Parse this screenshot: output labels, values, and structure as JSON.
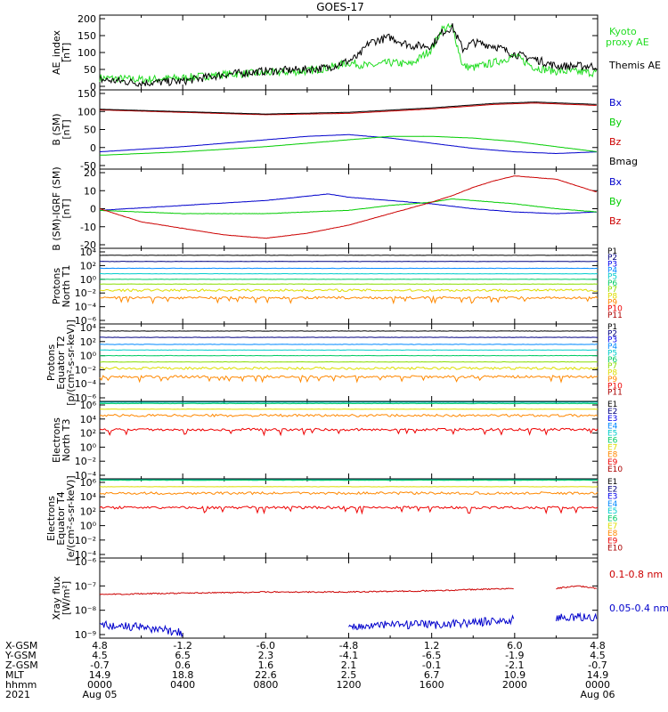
{
  "title": "GOES-17",
  "colors": {
    "black": "#000000",
    "blue": "#0000cc",
    "green": "#00cc00",
    "red": "#cc0000",
    "kyoto_green": "#22dd22"
  },
  "time_axis": {
    "rows": [
      {
        "label": "X-GSM",
        "values": [
          "4.8",
          "-1.2",
          "-6.0",
          "-4.8",
          "1.2",
          "6.0",
          "4.8"
        ]
      },
      {
        "label": "Y-GSM",
        "values": [
          "4.5",
          "6.5",
          "2.3",
          "-4.1",
          "-6.5",
          "-1.9",
          "4.5"
        ]
      },
      {
        "label": "Z-GSM",
        "values": [
          "-0.7",
          "0.6",
          "1.6",
          "2.1",
          "-0.1",
          "-2.1",
          "-0.7"
        ]
      },
      {
        "label": "MLT",
        "values": [
          "14.9",
          "18.8",
          "22.6",
          "2.5",
          "6.7",
          "10.9",
          "14.9"
        ]
      },
      {
        "label": "hhmm",
        "values": [
          "0000",
          "0400",
          "0800",
          "1200",
          "1600",
          "2000",
          "0000"
        ]
      },
      {
        "label": "2021",
        "values": [
          "Aug 05",
          "",
          "",
          "",
          "",
          "",
          "Aug 06"
        ]
      }
    ]
  },
  "chart_data": [
    {
      "type": "line",
      "ylabel": [
        "AE_index",
        "[nT]"
      ],
      "yticks": [
        "200",
        "150",
        "100",
        "50",
        "0"
      ],
      "ylim": [
        0,
        200
      ],
      "x": "hours 0-24, Aug 05 2021",
      "series": [
        {
          "name": "Kyoto proxy AE",
          "color": "#22dd22",
          "x": [
            0,
            2,
            4,
            6,
            8,
            10,
            11,
            12,
            13,
            14,
            15,
            16,
            16.5,
            17,
            17.5,
            18,
            19,
            20,
            21,
            22,
            24
          ],
          "values": [
            25,
            20,
            25,
            35,
            40,
            45,
            55,
            70,
            60,
            70,
            65,
            110,
            170,
            175,
            60,
            55,
            70,
            90,
            55,
            45,
            40
          ]
        },
        {
          "name": "Themis AE",
          "color": "#000000",
          "x": [
            0,
            2,
            4,
            6,
            8,
            10,
            11,
            12,
            12.5,
            13,
            14,
            15,
            16,
            16.5,
            17,
            17.5,
            18,
            19,
            20,
            21,
            22,
            24
          ],
          "values": [
            20,
            10,
            15,
            35,
            45,
            50,
            55,
            75,
            90,
            130,
            145,
            120,
            120,
            160,
            175,
            110,
            130,
            120,
            95,
            80,
            60,
            60
          ]
        }
      ]
    },
    {
      "type": "line",
      "ylabel": [
        "B (SM)",
        "[nT]"
      ],
      "yticks": [
        "150",
        "100",
        "50",
        "0",
        "-50"
      ],
      "ylim": [
        -60,
        150
      ],
      "series": [
        {
          "name": "Bx",
          "color": "#0000cc",
          "x": [
            0,
            4,
            8,
            10,
            12,
            14,
            16,
            18,
            20,
            22,
            24
          ],
          "values": [
            -20,
            -5,
            15,
            25,
            30,
            20,
            5,
            -10,
            -20,
            -25,
            -20
          ]
        },
        {
          "name": "By",
          "color": "#00cc00",
          "x": [
            0,
            4,
            8,
            11,
            14,
            16,
            18,
            20,
            22,
            24
          ],
          "values": [
            -30,
            -20,
            -5,
            10,
            25,
            25,
            20,
            10,
            -5,
            -20
          ]
        },
        {
          "name": "Bz",
          "color": "#cc0000",
          "x": [
            0,
            4,
            8,
            12,
            16,
            19,
            21,
            24
          ],
          "values": [
            102,
            95,
            88,
            92,
            105,
            118,
            122,
            115
          ]
        },
        {
          "name": "Bmag",
          "color": "#000000",
          "x": [
            0,
            4,
            8,
            12,
            16,
            19,
            21,
            24
          ],
          "values": [
            104,
            97,
            90,
            95,
            108,
            121,
            125,
            118
          ]
        }
      ]
    },
    {
      "type": "line",
      "ylabel": [
        "B (SM)-IGRF (SM)",
        "[nT]"
      ],
      "yticks": [
        "20",
        "10",
        "0",
        "-10",
        "-20"
      ],
      "ylim": [
        -22,
        22
      ],
      "series": [
        {
          "name": "Bx",
          "color": "#0000cc",
          "x": [
            0,
            4,
            8,
            11,
            12,
            14,
            16,
            18,
            20,
            22,
            24
          ],
          "values": [
            -1,
            2,
            5,
            9,
            7,
            5,
            3,
            0,
            -2,
            -3,
            -2
          ]
        },
        {
          "name": "By",
          "color": "#00cc00",
          "x": [
            0,
            4,
            8,
            12,
            14,
            16,
            17,
            18,
            20,
            22,
            24
          ],
          "values": [
            -1,
            -3,
            -3,
            -1,
            2,
            4,
            6,
            5,
            3,
            0,
            -2
          ]
        },
        {
          "name": "Bz",
          "color": "#cc0000",
          "x": [
            0,
            2,
            4,
            6,
            8,
            10,
            12,
            14,
            16,
            17,
            18,
            19,
            20,
            21,
            22,
            24
          ],
          "values": [
            0,
            -8,
            -12,
            -16,
            -18,
            -15,
            -10,
            -3,
            4,
            8,
            13,
            17,
            20,
            19,
            18,
            10
          ]
        }
      ]
    },
    {
      "type": "line",
      "ylabel": [
        "Protons",
        "North T1"
      ],
      "yticks": [
        "10⁴",
        "10²",
        "10⁰",
        "10⁻²",
        "10⁻⁴",
        "10⁻⁶"
      ],
      "legend": [
        "P1",
        "P2",
        "P3",
        "P4",
        "P5",
        "P6",
        "P7",
        "P8",
        "P9",
        "P10",
        "P11"
      ],
      "log_levels": [
        3.5,
        2.6,
        1.6,
        0.8,
        0,
        -0.7,
        -1.6,
        -2.7
      ]
    },
    {
      "type": "line",
      "ylabel": [
        "Protons",
        "Equator T2",
        "[p/(cm²-s-sr-keV)]"
      ],
      "yticks": [
        "10⁴",
        "10²",
        "10⁰",
        "10⁻²",
        "10⁻⁴",
        "10⁻⁶"
      ],
      "legend": [
        "P1",
        "P2",
        "P3",
        "P4",
        "P5",
        "P6",
        "P7",
        "P8",
        "P9",
        "P10",
        "P11"
      ],
      "log_levels": [
        3.5,
        2.6,
        1.6,
        0.8,
        0,
        -0.9,
        -1.8,
        -3.0
      ]
    },
    {
      "type": "line",
      "ylabel": [
        "Electrons",
        "North T3"
      ],
      "yticks": [
        "10⁶",
        "10⁴",
        "10²",
        "10⁰",
        "10⁻²",
        "10⁻⁴"
      ],
      "legend": [
        "E1",
        "E2",
        "E3",
        "E4",
        "E5",
        "E6",
        "E7",
        "E8",
        "E9",
        "E10"
      ],
      "log_levels": [
        4.6,
        4.3,
        4.0,
        3.6,
        2.9,
        2.2,
        1.4,
        0.5,
        -1.5
      ]
    },
    {
      "type": "line",
      "ylabel": [
        "Electrons",
        "Equator T4",
        "[e/(cm²-s-sr-keV)]"
      ],
      "yticks": [
        "10⁶",
        "10⁴",
        "10²",
        "10⁰",
        "10⁻²",
        "10⁻⁴"
      ],
      "legend": [
        "E1",
        "E2",
        "E3",
        "E4",
        "E5",
        "E6",
        "E7",
        "E8",
        "E9",
        "E10"
      ],
      "log_levels": [
        4.8,
        4.4,
        4.1,
        3.7,
        3.0,
        2.3,
        1.4,
        0.5,
        -1.5
      ]
    },
    {
      "type": "line",
      "ylabel": [
        "Xray flux",
        "[W/m²]"
      ],
      "yticks": [
        "10⁻⁶",
        "10⁻⁷",
        "10⁻⁸",
        "10⁻⁹"
      ],
      "series": [
        {
          "name": "0.1-0.8 nm",
          "color": "#cc0000",
          "x": [
            0,
            4,
            8,
            12,
            16,
            20,
            21.2,
            22,
            23,
            24
          ],
          "values": [
            -7.35,
            -7.3,
            -7.25,
            -7.25,
            -7.2,
            -7.1,
            null,
            -7.1,
            -7.0,
            -7.1
          ]
        },
        {
          "name": "0.05-0.4 nm",
          "color": "#0000cc",
          "x": [
            0,
            2,
            4,
            6,
            8,
            10,
            12,
            14,
            16,
            18,
            20,
            21.2,
            22,
            24
          ],
          "values": [
            -8.6,
            -8.7,
            -8.9,
            null,
            null,
            null,
            -8.7,
            -8.6,
            -8.6,
            -8.5,
            -8.4,
            null,
            -8.3,
            -8.3
          ]
        }
      ]
    }
  ]
}
